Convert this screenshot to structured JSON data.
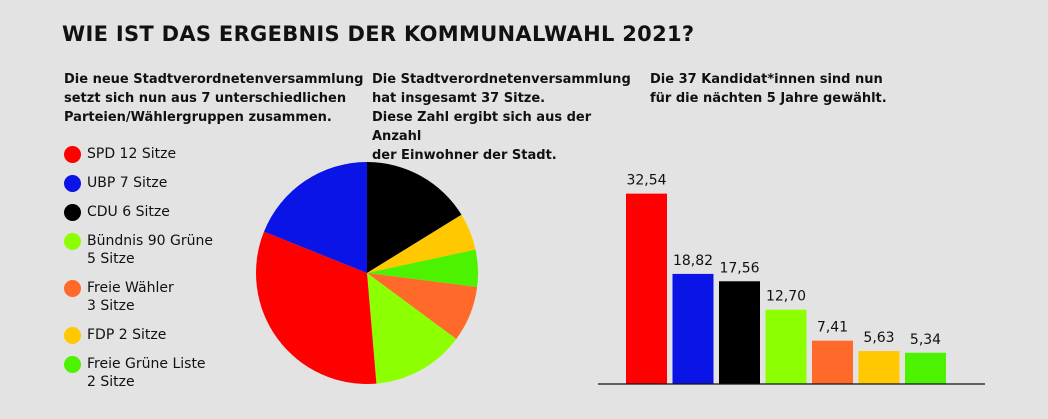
{
  "title": "WIE IST DAS ERGEBNIS DER KOMMUNALWAHL 2021?",
  "intro": {
    "col1": "Die neue Stadtverordnetenversammlung\nsetzt sich nun aus 7 unterschiedlichen\nParteien/Wählergruppen zusammen.",
    "col2": "Die Stadtverordnetenversammlung\nhat insgesamt 37 Sitze.\nDiese Zahl ergibt sich aus der Anzahl\nder Einwohner der Stadt.",
    "col3": "Die 37 Kandidat*innen sind nun\nfür die nächten 5 Jahre gewählt."
  },
  "chart_data": [
    {
      "type": "pie",
      "slices": [
        {
          "label": "SPD 12 Sitze",
          "value": 12,
          "color": "#ff0000"
        },
        {
          "label": "UBP 7 Sitze",
          "value": 7,
          "color": "#0a14e6"
        },
        {
          "label": "CDU 6 Sitze",
          "value": 6,
          "color": "#000000"
        },
        {
          "label": "Bündnis 90 Grüne\n5 Sitze",
          "value": 5,
          "color": "#8cff00"
        },
        {
          "label": "Freie Wähler\n3 Sitze",
          "value": 3,
          "color": "#ff6a2a"
        },
        {
          "label": "FDP 2 Sitze",
          "value": 2,
          "color": "#ffc800"
        },
        {
          "label": "Freie Grüne Liste\n2 Sitze",
          "value": 2,
          "color": "#4cf200"
        }
      ],
      "order_clockwise_from_top": [
        "CDU",
        "FDP",
        "Freie Grüne Liste",
        "Freie Wähler",
        "Bündnis 90 Grüne",
        "SPD",
        "UBP"
      ]
    },
    {
      "type": "bar",
      "values": [
        32.54,
        18.82,
        17.56,
        12.7,
        7.41,
        5.63,
        5.34
      ],
      "labels": [
        "32,54",
        "18,82",
        "17,56",
        "12,70",
        "7,41",
        "5,63",
        "5,34"
      ],
      "colors": [
        "#ff0000",
        "#0a14e6",
        "#000000",
        "#8cff00",
        "#ff6a2a",
        "#ffc800",
        "#4cf200"
      ],
      "ylim": [
        0,
        40
      ]
    }
  ]
}
